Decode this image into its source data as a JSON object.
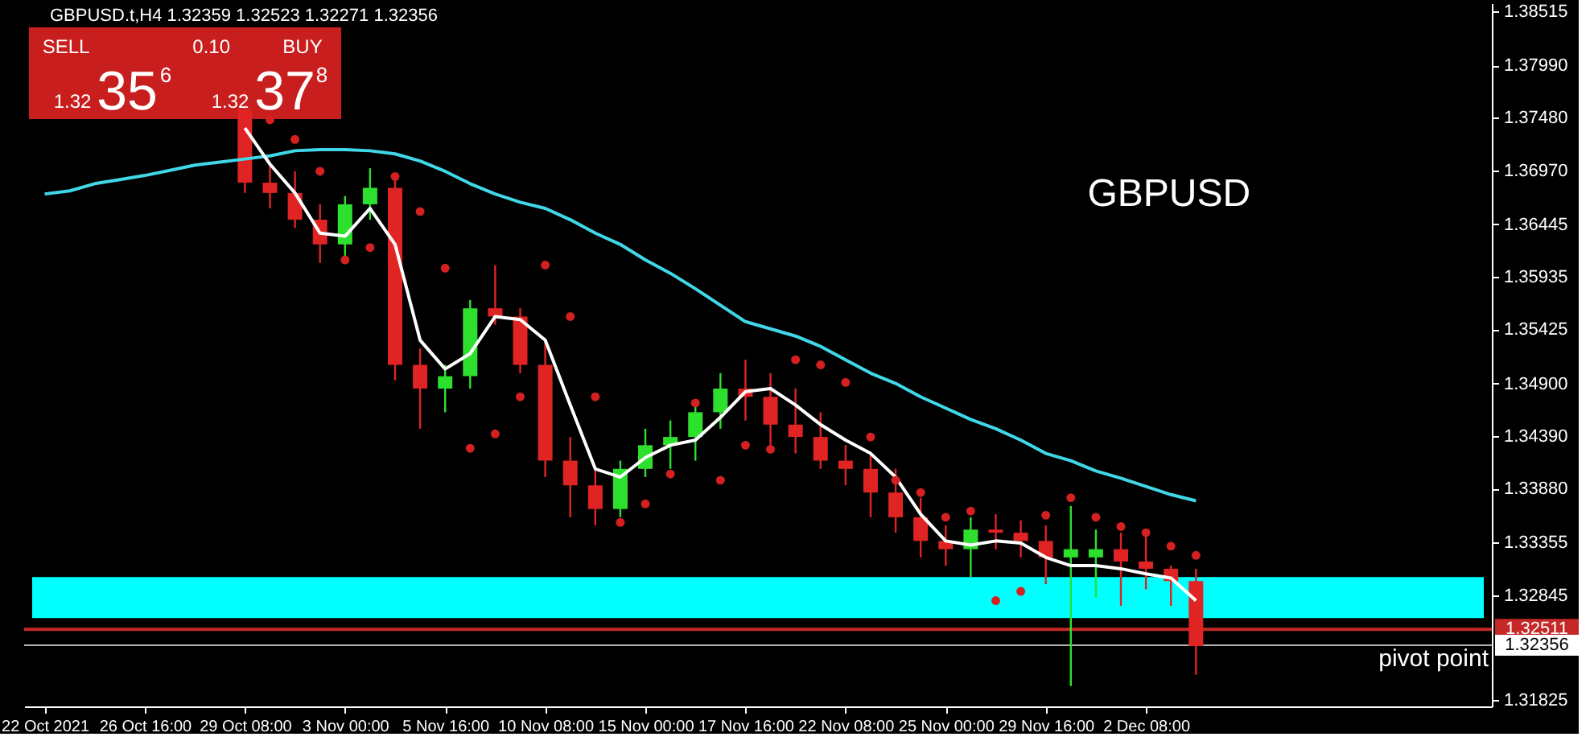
{
  "chart_data": {
    "type": "candlestick",
    "title": "GBPUSD.t,H4  1.32359 1.32523 1.32271 1.32356",
    "categories": [
      "22 Oct 2021",
      null,
      null,
      null,
      "26 Oct 16:00",
      null,
      null,
      null,
      "29 Oct 08:00",
      null,
      null,
      null,
      "3 Nov 00:00",
      null,
      null,
      null,
      "5 Nov 16:00",
      null,
      null,
      null,
      "10 Nov 08:00",
      null,
      null,
      null,
      "15 Nov 00:00",
      null,
      null,
      null,
      "17 Nov 16:00",
      null,
      null,
      null,
      "22 Nov 08:00",
      null,
      null,
      null,
      "25 Nov 00:00",
      null,
      null,
      null,
      "29 Nov 16:00",
      null,
      null,
      null,
      "2 Dec 08:00",
      null,
      null,
      null,
      null,
      null,
      null,
      null,
      null,
      null,
      null,
      null,
      null,
      null
    ],
    "series": [
      {
        "ohlc": [
          null,
          null,
          null,
          null,
          null,
          null,
          null,
          null,
          [
            1.3756,
            1.3774,
            1.3675,
            1.3685
          ],
          [
            1.3685,
            1.3703,
            1.366,
            1.3675
          ],
          [
            1.3675,
            1.3696,
            1.3641,
            1.3649
          ],
          [
            1.3649,
            1.3664,
            1.3607,
            1.3625
          ],
          [
            1.3625,
            1.3672,
            1.3613,
            1.3664
          ],
          [
            1.3664,
            1.3699,
            1.3649,
            1.368
          ],
          [
            1.368,
            1.3688,
            1.3493,
            1.3508
          ],
          [
            1.3508,
            1.3524,
            1.3446,
            1.3485
          ],
          [
            1.3485,
            1.3508,
            1.3462,
            1.3497
          ],
          [
            1.3497,
            1.3571,
            1.3485,
            1.3563
          ],
          [
            1.3563,
            1.3605,
            1.3547,
            1.3555
          ],
          [
            1.3555,
            1.3563,
            1.35,
            1.3508
          ],
          [
            1.3508,
            1.3532,
            1.3399,
            1.3415
          ],
          [
            1.3415,
            1.3438,
            1.336,
            1.3391
          ],
          [
            1.3391,
            1.3407,
            1.3352,
            1.3368
          ],
          [
            1.3368,
            1.3415,
            1.336,
            1.3407
          ],
          [
            1.3407,
            1.3446,
            1.3399,
            1.343
          ],
          [
            1.343,
            1.3454,
            1.3407,
            1.3438
          ],
          [
            1.3438,
            1.3469,
            1.3415,
            1.3462
          ],
          [
            1.3462,
            1.35,
            1.3446,
            1.3485
          ],
          [
            1.3485,
            1.3513,
            1.3454,
            1.3477
          ],
          [
            1.3477,
            1.35,
            1.343,
            1.345
          ],
          [
            1.345,
            1.3485,
            1.3422,
            1.3438
          ],
          [
            1.3438,
            1.3462,
            1.3407,
            1.3415
          ],
          [
            1.3415,
            1.343,
            1.3391,
            1.3407
          ],
          [
            1.3407,
            1.3422,
            1.336,
            1.3384
          ],
          [
            1.3384,
            1.3407,
            1.3345,
            1.336
          ],
          [
            1.336,
            1.3379,
            1.3321,
            1.3337
          ],
          [
            1.3337,
            1.3352,
            1.3313,
            1.3329
          ],
          [
            1.3329,
            1.336,
            1.3302,
            1.3348
          ],
          [
            1.3348,
            1.3363,
            1.3329,
            1.3345
          ],
          [
            1.3345,
            1.3357,
            1.3321,
            1.3337
          ],
          [
            1.3337,
            1.3352,
            1.3295,
            1.3321
          ],
          [
            1.3321,
            1.3371,
            1.3196,
            1.3329
          ],
          [
            1.3321,
            1.3348,
            1.3282,
            1.3329
          ],
          [
            1.3329,
            1.3345,
            1.3274,
            1.3317
          ],
          [
            1.3317,
            1.3341,
            1.329,
            1.331
          ],
          [
            1.331,
            1.3313,
            1.3274,
            1.3298
          ],
          [
            1.3298,
            1.331,
            1.3207,
            1.3235
          ],
          null,
          null,
          null,
          null,
          null,
          null,
          null,
          null,
          null,
          null,
          null
        ],
        "colors": [
          "#2ee02e",
          "#e02424",
          "#2ee02e",
          "#2ee02e",
          "#e02424",
          "#2ee02e",
          "#2ee02e",
          "#2ee02e",
          "#e02424",
          "#e02424",
          "#e02424",
          "#e02424",
          "#2ee02e",
          "#2ee02e",
          "#e02424",
          "#e02424",
          "#2ee02e",
          "#2ee02e",
          "#e02424",
          "#e02424",
          "#e02424",
          "#e02424",
          "#e02424",
          "#2ee02e",
          "#2ee02e",
          "#2ee02e",
          "#2ee02e",
          "#2ee02e",
          "#e02424",
          "#e02424",
          "#e02424",
          "#e02424",
          "#e02424",
          "#e02424",
          "#e02424",
          "#e02424",
          "#e02424",
          "#2ee02e",
          "#e02424",
          "#e02424",
          "#e02424",
          "#2ee02e",
          "#2ee02e",
          "#e02424",
          "#e02424",
          "#e02424",
          "#e02424",
          null,
          null,
          null,
          null,
          null,
          null,
          null,
          null,
          null,
          null,
          null
        ]
      },
      {
        "type": "line",
        "color": "#40d8e8",
        "values": [
          1.3674,
          1.3677,
          1.3684,
          1.3688,
          1.3692,
          1.3697,
          1.3702,
          1.3705,
          1.3708,
          1.3711,
          1.3716,
          1.3717,
          1.3717,
          1.3716,
          1.3713,
          1.3706,
          1.3696,
          1.3684,
          1.3674,
          1.3666,
          1.366,
          1.3649,
          1.3636,
          1.3625,
          1.361,
          1.3597,
          1.3582,
          1.3566,
          1.355,
          1.3543,
          1.3536,
          1.3526,
          1.3513,
          1.35,
          1.349,
          1.3477,
          1.3466,
          1.3455,
          1.3446,
          1.3435,
          1.3422,
          1.3415,
          1.3405,
          1.3398,
          1.339,
          1.3382,
          1.3376,
          null,
          null,
          null,
          null,
          null,
          null,
          null,
          null,
          null,
          null,
          null
        ]
      },
      {
        "type": "line",
        "color": "#ffffff",
        "values": [
          null,
          null,
          null,
          null,
          null,
          null,
          null,
          null,
          1.3738,
          1.3703,
          1.3675,
          1.3636,
          1.3633,
          1.366,
          1.3625,
          1.3532,
          1.3504,
          1.3519,
          1.3555,
          1.3552,
          1.3532,
          1.3469,
          1.3407,
          1.3399,
          1.3418,
          1.343,
          1.3435,
          1.3457,
          1.3482,
          1.3485,
          1.3469,
          1.345,
          1.3435,
          1.3422,
          1.3399,
          1.3363,
          1.3337,
          1.3333,
          1.3337,
          1.3335,
          1.3321,
          1.3313,
          1.3313,
          1.331,
          1.3305,
          1.3301,
          1.3279,
          null,
          null,
          null,
          null,
          null,
          null,
          null,
          null,
          null,
          null,
          null
        ]
      },
      {
        "type": "scatter",
        "color": "#d42020",
        "marker": "circle",
        "values": [
          null,
          null,
          null,
          null,
          null,
          null,
          null,
          null,
          null,
          1.3746,
          1.3727,
          1.3696,
          1.361,
          1.3622,
          1.3691,
          1.3657,
          1.3602,
          1.3427,
          1.3441,
          1.3477,
          1.3605,
          1.3555,
          1.3477,
          1.3355,
          1.3373,
          1.3402,
          1.3471,
          1.3396,
          1.343,
          1.3426,
          1.3513,
          1.3508,
          1.3491,
          1.3438,
          1.3396,
          1.3384,
          1.336,
          1.3366,
          1.3279,
          1.3288,
          1.3362,
          1.3379,
          1.336,
          1.3351,
          1.3345,
          1.3332,
          1.3323,
          null,
          null,
          null,
          null,
          null,
          null,
          null,
          null,
          null,
          null,
          null
        ]
      }
    ],
    "ylim": [
      1.31763,
      1.38593
    ],
    "yticks": [
      1.38515,
      {
        "value": 1.3799,
        "label": "1.37990"
      },
      {
        "value": 1.3748,
        "label": "1.37480"
      },
      {
        "value": 1.3697,
        "label": "1.36970"
      },
      1.36445,
      1.35935,
      1.35425,
      {
        "value": 1.349,
        "label": "1.34900"
      },
      {
        "value": 1.3439,
        "label": "1.34390"
      },
      {
        "value": 1.3388,
        "label": "1.33880"
      },
      1.33355,
      1.32845,
      1.31825
    ],
    "bands": [
      {
        "axis": "y",
        "from": 1.3262,
        "to": 1.3302,
        "color": "#00ffff"
      }
    ],
    "ref_lines": [
      {
        "axis": "y",
        "value": 1.32511,
        "label": "1.32511",
        "color": "#c62828",
        "line_style": "solid"
      },
      {
        "axis": "y",
        "value": 1.32356,
        "label": "1.32356",
        "color": "#b0b0b0",
        "line_style": "solid"
      }
    ],
    "annotations": [
      "GBPUSD",
      "pivot point",
      "SELL",
      "0.10",
      "BUY",
      "1.32",
      "35",
      "6",
      "1.32",
      "37",
      "8"
    ],
    "grid": false
  }
}
